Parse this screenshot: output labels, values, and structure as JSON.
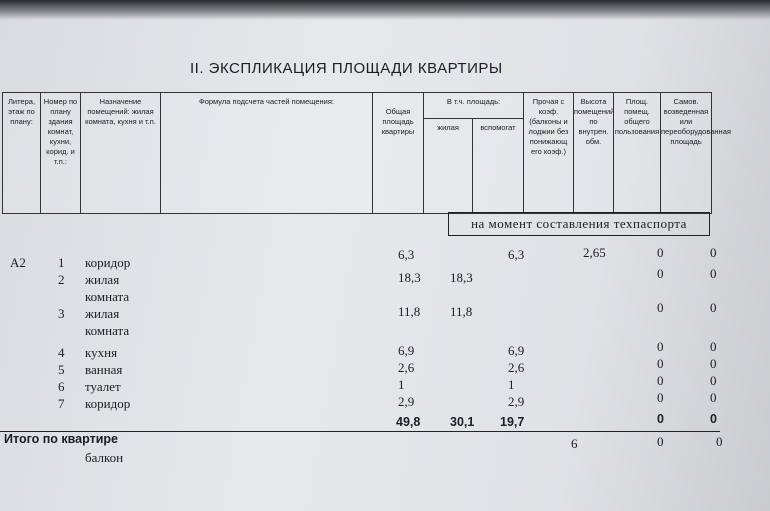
{
  "title": "II. ЭКСПЛИКАЦИЯ ПЛОЩАДИ КВАРТИРЫ",
  "headers": {
    "litera": "Литера, этаж по плану:",
    "number": "Номер по плану здания комнат, кухни, корид. и т.п.:",
    "purpose": "Назначение помещений: жилая комната, кухня и т.п.",
    "formula": "Формула подсчета частей помещения:",
    "total": "Общая площадь квартиры",
    "incl": "В т.ч. площадь:",
    "living": "жилая",
    "aux": "вспомогат",
    "other": "Прочая с коэф. (балконы и лоджии без понижающ его коэф.)",
    "height": "Высота помещений по внутрен. обм.",
    "common": "Площ. помещ. общего пользования",
    "selfbuilt": "Самов. возведенная или переоборудованная площадь"
  },
  "stamp": "на момент составления техпаспорта",
  "rows": [
    {
      "litera": "A2",
      "num": "1",
      "name": "коридор",
      "total": "6,3",
      "living": "",
      "aux": "6,3",
      "other": "",
      "height": "2,65",
      "common": "0",
      "self": "0"
    },
    {
      "litera": "",
      "num": "2",
      "name": "жилая",
      "name2": "комната",
      "total": "18,3",
      "living": "18,3",
      "aux": "",
      "other": "",
      "height": "",
      "common": "0",
      "self": "0"
    },
    {
      "litera": "",
      "num": "3",
      "name": "жилая",
      "name2": "комната",
      "total": "11,8",
      "living": "11,8",
      "aux": "",
      "other": "",
      "height": "",
      "common": "0",
      "self": "0"
    },
    {
      "litera": "",
      "num": "4",
      "name": "кухня",
      "total": "6,9",
      "living": "",
      "aux": "6,9",
      "other": "",
      "height": "",
      "common": "0",
      "self": "0"
    },
    {
      "litera": "",
      "num": "5",
      "name": "ванная",
      "total": "2,6",
      "living": "",
      "aux": "2,6",
      "other": "",
      "height": "",
      "common": "0",
      "self": "0"
    },
    {
      "litera": "",
      "num": "6",
      "name": "туалет",
      "total": "1",
      "living": "",
      "aux": "1",
      "other": "",
      "height": "",
      "common": "0",
      "self": "0"
    },
    {
      "litera": "",
      "num": "7",
      "name": "коридор",
      "total": "2,9",
      "living": "",
      "aux": "2,9",
      "other": "",
      "height": "",
      "common": "0",
      "self": "0"
    }
  ],
  "summary": {
    "label": "Итого по квартире",
    "total": "49,8",
    "living": "30,1",
    "aux": "19,7",
    "common": "0",
    "self": "0"
  },
  "balcony": {
    "name": "балкон",
    "other": "6",
    "common": "0",
    "self": "0"
  }
}
